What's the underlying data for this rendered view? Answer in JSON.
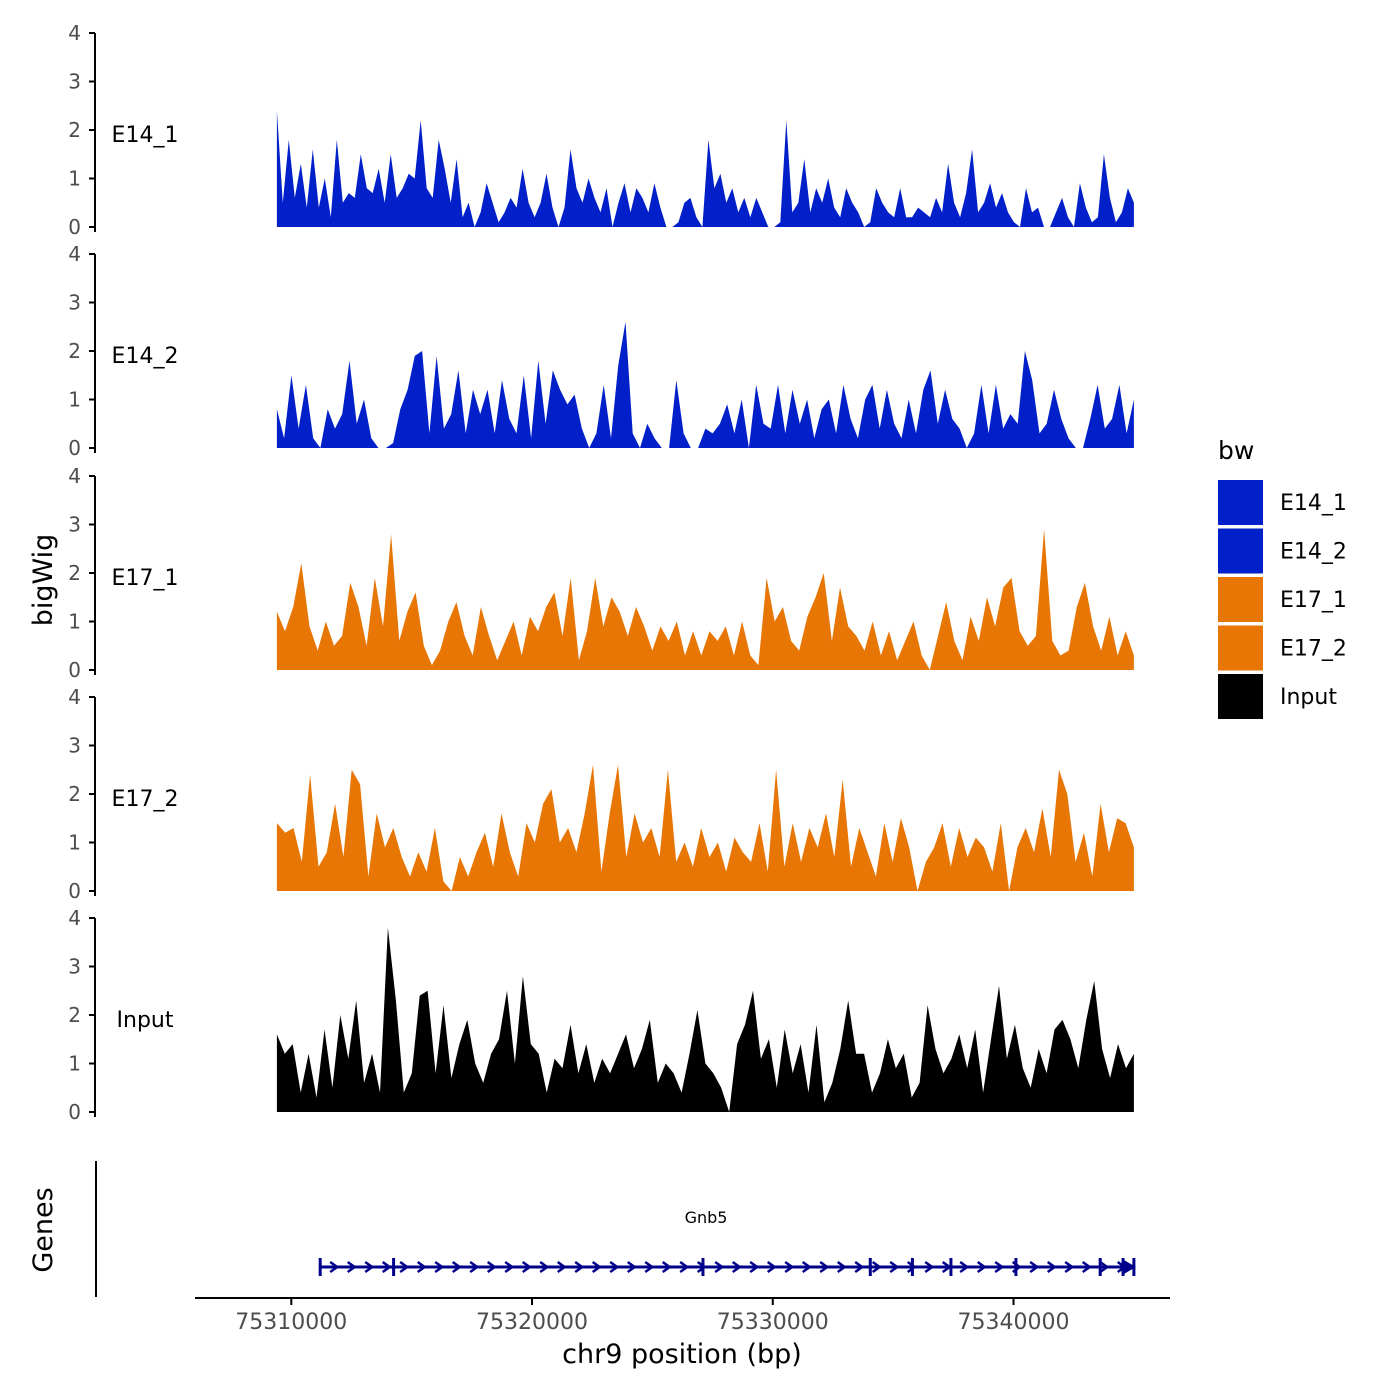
{
  "chart_data": {
    "type": "area",
    "ylabel": "bigWig",
    "xlabel": "chr9 position (bp)",
    "chromosome": "chr9",
    "xlim": [
      75306000,
      75346500
    ],
    "data_range": [
      75309400,
      75345000
    ],
    "ylim": [
      0,
      4
    ],
    "y_ticks": [
      "0",
      "1",
      "2",
      "3",
      "4"
    ],
    "x_ticks": [
      {
        "value": 75310000,
        "label": "75310000"
      },
      {
        "value": 75320000,
        "label": "75320000"
      },
      {
        "value": 75330000,
        "label": "75330000"
      },
      {
        "value": 75340000,
        "label": "75340000"
      }
    ],
    "legend": {
      "title": "bw",
      "position": "right",
      "entries": [
        {
          "label": "E14_1",
          "color": "#0120C9"
        },
        {
          "label": "E14_2",
          "color": "#0120C9"
        },
        {
          "label": "E17_1",
          "color": "#E87604"
        },
        {
          "label": "E17_2",
          "color": "#E87604"
        },
        {
          "label": "Input",
          "color": "#000000"
        }
      ]
    },
    "series": [
      {
        "name": "E14_1",
        "color": "#0120C9",
        "values": [
          2.4,
          0.5,
          1.8,
          0.6,
          1.3,
          0.4,
          1.6,
          0.4,
          1.0,
          0.2,
          1.8,
          0.5,
          0.7,
          0.6,
          1.5,
          0.8,
          0.7,
          1.2,
          0.5,
          1.5,
          0.6,
          0.8,
          1.1,
          1.0,
          2.2,
          0.8,
          0.6,
          1.8,
          1.2,
          0.5,
          1.4,
          0.2,
          0.5,
          0.0,
          0.3,
          0.9,
          0.5,
          0.1,
          0.3,
          0.6,
          0.4,
          1.2,
          0.5,
          0.2,
          0.5,
          1.1,
          0.4,
          0.0,
          0.4,
          1.6,
          0.8,
          0.5,
          1.0,
          0.6,
          0.3,
          0.8,
          0.0,
          0.5,
          0.9,
          0.3,
          0.8,
          0.6,
          0.3,
          0.9,
          0.4,
          0.0,
          0.0,
          0.1,
          0.5,
          0.6,
          0.2,
          0.0,
          1.8,
          0.8,
          1.1,
          0.5,
          0.8,
          0.3,
          0.6,
          0.2,
          0.6,
          0.3,
          0.0,
          0.0,
          0.1,
          2.2,
          0.3,
          0.5,
          1.4,
          0.3,
          0.8,
          0.5,
          1.0,
          0.4,
          0.2,
          0.8,
          0.5,
          0.3,
          0.0,
          0.1,
          0.8,
          0.5,
          0.3,
          0.2,
          0.8,
          0.2,
          0.2,
          0.4,
          0.3,
          0.2,
          0.6,
          0.3,
          1.3,
          0.5,
          0.2,
          0.7,
          1.6,
          0.3,
          0.5,
          0.9,
          0.4,
          0.7,
          0.3,
          0.1,
          0.0,
          0.8,
          0.3,
          0.4,
          0.0,
          0.0,
          0.3,
          0.6,
          0.2,
          0.0,
          0.9,
          0.4,
          0.1,
          0.2,
          1.5,
          0.6,
          0.1,
          0.3,
          0.8,
          0.5
        ]
      },
      {
        "name": "E14_2",
        "color": "#0120C9",
        "values": [
          0.8,
          0.2,
          1.5,
          0.4,
          1.3,
          0.2,
          0.0,
          0.8,
          0.4,
          0.7,
          1.8,
          0.5,
          1.0,
          0.2,
          0.0,
          0.0,
          0.1,
          0.8,
          1.2,
          1.9,
          2.0,
          0.3,
          1.9,
          0.4,
          0.7,
          1.6,
          0.3,
          1.2,
          0.7,
          1.2,
          0.3,
          1.4,
          0.6,
          0.3,
          1.5,
          0.2,
          1.8,
          0.5,
          1.6,
          1.2,
          0.9,
          1.1,
          0.4,
          0.0,
          0.3,
          1.3,
          0.2,
          1.7,
          2.6,
          0.3,
          0.0,
          0.5,
          0.2,
          0.0,
          0.0,
          1.4,
          0.3,
          0.0,
          0.0,
          0.4,
          0.3,
          0.5,
          0.9,
          0.3,
          1.0,
          0.0,
          1.3,
          0.5,
          0.4,
          1.3,
          0.3,
          1.2,
          0.5,
          1.0,
          0.2,
          0.8,
          1.0,
          0.3,
          1.3,
          0.6,
          0.2,
          1.0,
          1.3,
          0.4,
          1.2,
          0.5,
          0.2,
          1.0,
          0.3,
          1.2,
          1.6,
          0.5,
          1.2,
          0.6,
          0.4,
          0.0,
          0.3,
          1.3,
          0.3,
          1.3,
          0.4,
          0.7,
          0.5,
          2.0,
          1.4,
          0.3,
          0.5,
          1.2,
          0.6,
          0.2,
          0.0,
          0.0,
          0.6,
          1.3,
          0.4,
          0.6,
          1.3,
          0.3,
          1.0
        ]
      },
      {
        "name": "E17_1",
        "color": "#E87604",
        "values": [
          1.2,
          0.8,
          1.3,
          2.2,
          0.9,
          0.4,
          1.0,
          0.5,
          0.7,
          1.8,
          1.3,
          0.5,
          1.9,
          0.9,
          2.8,
          0.6,
          1.2,
          1.6,
          0.5,
          0.1,
          0.4,
          1.0,
          1.4,
          0.7,
          0.3,
          1.3,
          0.7,
          0.2,
          0.6,
          1.0,
          0.3,
          1.1,
          0.8,
          1.3,
          1.6,
          0.7,
          1.9,
          0.2,
          0.8,
          1.9,
          0.9,
          1.5,
          1.2,
          0.7,
          1.3,
          0.9,
          0.4,
          0.9,
          0.6,
          1.0,
          0.3,
          0.8,
          0.3,
          0.8,
          0.6,
          0.9,
          0.3,
          1.0,
          0.3,
          0.1,
          1.9,
          1.0,
          1.3,
          0.6,
          0.4,
          1.1,
          1.5,
          2.0,
          0.6,
          1.7,
          0.9,
          0.7,
          0.4,
          1.0,
          0.3,
          0.8,
          0.2,
          0.6,
          1.0,
          0.3,
          0.0,
          0.7,
          1.4,
          0.6,
          0.2,
          1.1,
          0.6,
          1.5,
          0.9,
          1.7,
          1.9,
          0.8,
          0.5,
          0.7,
          2.9,
          0.6,
          0.3,
          0.4,
          1.3,
          1.8,
          0.9,
          0.4,
          1.1,
          0.3,
          0.8,
          0.3
        ]
      },
      {
        "name": "E17_2",
        "color": "#E87604",
        "values": [
          1.4,
          1.2,
          1.3,
          0.6,
          2.4,
          0.5,
          0.8,
          1.8,
          0.7,
          2.5,
          2.2,
          0.3,
          1.6,
          0.9,
          1.3,
          0.7,
          0.3,
          0.8,
          0.4,
          1.3,
          0.2,
          0.0,
          0.7,
          0.3,
          0.8,
          1.2,
          0.5,
          1.6,
          0.8,
          0.3,
          1.4,
          1.0,
          1.8,
          2.1,
          1.0,
          1.3,
          0.8,
          1.6,
          2.6,
          0.4,
          1.6,
          2.6,
          0.7,
          1.6,
          1.0,
          1.3,
          0.7,
          2.5,
          0.6,
          1.0,
          0.5,
          1.3,
          0.7,
          1.0,
          0.4,
          1.1,
          0.8,
          0.6,
          1.4,
          0.4,
          2.5,
          0.5,
          1.4,
          0.6,
          1.3,
          0.9,
          1.6,
          0.7,
          2.3,
          0.5,
          1.3,
          0.8,
          0.3,
          1.4,
          0.6,
          1.5,
          0.9,
          0.0,
          0.6,
          0.9,
          1.4,
          0.5,
          1.3,
          0.7,
          1.1,
          0.9,
          0.4,
          1.4,
          0.0,
          0.9,
          1.3,
          0.8,
          1.7,
          0.7,
          2.5,
          2.0,
          0.6,
          1.2,
          0.3,
          1.8,
          0.8,
          1.5,
          1.4,
          0.9
        ]
      },
      {
        "name": "Input",
        "color": "#000000",
        "values": [
          1.6,
          1.2,
          1.4,
          0.4,
          1.2,
          0.3,
          1.7,
          0.5,
          2.0,
          1.1,
          2.3,
          0.6,
          1.2,
          0.4,
          3.8,
          2.3,
          0.4,
          0.8,
          2.4,
          2.5,
          0.8,
          2.2,
          0.7,
          1.4,
          1.9,
          1.0,
          0.6,
          1.2,
          1.5,
          2.5,
          1.0,
          2.8,
          1.4,
          1.2,
          0.4,
          1.1,
          0.9,
          1.8,
          0.8,
          1.4,
          0.6,
          1.1,
          0.8,
          1.2,
          1.6,
          0.9,
          1.3,
          1.9,
          0.6,
          1.0,
          0.8,
          0.4,
          1.2,
          2.1,
          1.0,
          0.8,
          0.5,
          0.0,
          1.4,
          1.8,
          2.5,
          1.1,
          1.5,
          0.5,
          1.7,
          0.8,
          1.4,
          0.4,
          1.8,
          0.2,
          0.6,
          1.3,
          2.3,
          1.2,
          1.2,
          0.4,
          0.8,
          1.5,
          0.9,
          1.2,
          0.3,
          0.6,
          2.2,
          1.3,
          0.8,
          1.1,
          1.6,
          0.9,
          1.7,
          0.4,
          1.5,
          2.6,
          1.1,
          1.8,
          0.9,
          0.5,
          1.3,
          0.8,
          1.7,
          1.9,
          1.5,
          0.9,
          1.9,
          2.7,
          1.3,
          0.7,
          1.4,
          0.9,
          1.2
        ]
      }
    ],
    "genes_track": {
      "label": "Genes",
      "gene_name": "Gnb5",
      "start": 75311200,
      "end": 75345000,
      "strand": "+",
      "color": "#00008B",
      "exons": [
        75311200,
        75314250,
        75327100,
        75334050,
        75335800,
        75337400,
        75340100,
        75343600,
        75344550,
        75345000
      ]
    }
  }
}
